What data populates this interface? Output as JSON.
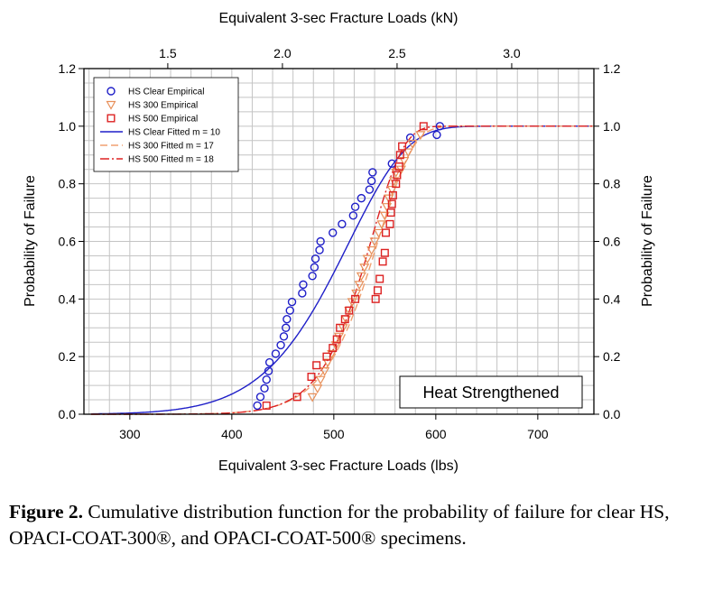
{
  "chart_data": {
    "type": "scatter",
    "xlabel": "Equivalent 3-sec Fracture Loads (lbs)",
    "x2label": "Equivalent 3-sec Fracture Loads (kN)",
    "ylabel": "Probability of Failure",
    "y2label": "Probability of Failure",
    "xlim": [
      255,
      755
    ],
    "ylim": [
      0,
      1.2
    ],
    "xticks": [
      300,
      400,
      500,
      600,
      700
    ],
    "x2ticks": [
      "1.5",
      "2.0",
      "2.5",
      "3.0"
    ],
    "x2ticks_kN": [
      1.5,
      2.0,
      2.5,
      3.0
    ],
    "yticks": [
      "0.0",
      "0.2",
      "0.4",
      "0.6",
      "0.8",
      "1.0",
      "1.2"
    ],
    "grid": true,
    "legend_position": "top-left",
    "annotation": "Heat Strengthened",
    "series": [
      {
        "name": "HS Clear Empirical",
        "marker": "circle",
        "color": "#1f1fc8",
        "points": [
          [
            425,
            0.03
          ],
          [
            428,
            0.06
          ],
          [
            432,
            0.09
          ],
          [
            434,
            0.12
          ],
          [
            436,
            0.15
          ],
          [
            437,
            0.18
          ],
          [
            443,
            0.21
          ],
          [
            448,
            0.24
          ],
          [
            451,
            0.27
          ],
          [
            453,
            0.3
          ],
          [
            454,
            0.33
          ],
          [
            457,
            0.36
          ],
          [
            459,
            0.39
          ],
          [
            469,
            0.42
          ],
          [
            470,
            0.45
          ],
          [
            479,
            0.48
          ],
          [
            481,
            0.51
          ],
          [
            482,
            0.54
          ],
          [
            486,
            0.57
          ],
          [
            487,
            0.6
          ],
          [
            499,
            0.63
          ],
          [
            508,
            0.66
          ],
          [
            519,
            0.69
          ],
          [
            521,
            0.72
          ],
          [
            527,
            0.75
          ],
          [
            535,
            0.78
          ],
          [
            537,
            0.81
          ],
          [
            538,
            0.84
          ],
          [
            557,
            0.87
          ],
          [
            575,
            0.96
          ],
          [
            601,
            0.97
          ],
          [
            604,
            1.0
          ]
        ]
      },
      {
        "name": "HS 300 Empirical",
        "marker": "triangle-down",
        "color": "#e8905a",
        "points": [
          [
            479,
            0.06
          ],
          [
            484,
            0.09
          ],
          [
            487,
            0.12
          ],
          [
            491,
            0.15
          ],
          [
            494,
            0.18
          ],
          [
            498,
            0.21
          ],
          [
            502,
            0.24
          ],
          [
            505,
            0.27
          ],
          [
            509,
            0.3
          ],
          [
            512,
            0.33
          ],
          [
            515,
            0.36
          ],
          [
            518,
            0.39
          ],
          [
            522,
            0.42
          ],
          [
            525,
            0.45
          ],
          [
            527,
            0.48
          ],
          [
            530,
            0.51
          ],
          [
            533,
            0.54
          ],
          [
            537,
            0.57
          ],
          [
            540,
            0.6
          ],
          [
            544,
            0.63
          ],
          [
            547,
            0.66
          ],
          [
            550,
            0.69
          ],
          [
            552,
            0.72
          ],
          [
            554,
            0.75
          ],
          [
            557,
            0.78
          ],
          [
            559,
            0.81
          ],
          [
            561,
            0.84
          ],
          [
            566,
            0.85
          ],
          [
            569,
            0.88
          ],
          [
            573,
            0.91
          ],
          [
            577,
            0.94
          ],
          [
            585,
            0.97
          ]
        ]
      },
      {
        "name": "HS 500 Empirical",
        "marker": "square",
        "color": "#dd2222",
        "points": [
          [
            434,
            0.03
          ],
          [
            464,
            0.06
          ],
          [
            478,
            0.13
          ],
          [
            483,
            0.17
          ],
          [
            493,
            0.2
          ],
          [
            499,
            0.23
          ],
          [
            503,
            0.26
          ],
          [
            506,
            0.3
          ],
          [
            511,
            0.33
          ],
          [
            515,
            0.36
          ],
          [
            521,
            0.4
          ],
          [
            541,
            0.4
          ],
          [
            543,
            0.43
          ],
          [
            545,
            0.47
          ],
          [
            548,
            0.53
          ],
          [
            550,
            0.56
          ],
          [
            551,
            0.63
          ],
          [
            555,
            0.66
          ],
          [
            556,
            0.7
          ],
          [
            557,
            0.73
          ],
          [
            558,
            0.76
          ],
          [
            561,
            0.8
          ],
          [
            562,
            0.83
          ],
          [
            564,
            0.86
          ],
          [
            565,
            0.9
          ],
          [
            567,
            0.93
          ],
          [
            588,
            1.0
          ]
        ]
      },
      {
        "name": "HS Clear Fitted m = 10",
        "line": "solid",
        "color": "#1f1fc8",
        "m": 10,
        "scale": 520
      },
      {
        "name": "HS 300 Fitted m = 17",
        "line": "dashed",
        "color": "#f0a070",
        "m": 17,
        "scale": 546
      },
      {
        "name": "HS 500 Fitted m = 18",
        "line": "dashdot",
        "color": "#dd2222",
        "m": 18,
        "scale": 539
      }
    ]
  },
  "caption": {
    "label": "Figure 2.",
    "text": " Cumulative distribution function for the probability of failure for clear HS, OPACI-COAT-300®, and OPACI-COAT-500® specimens."
  }
}
